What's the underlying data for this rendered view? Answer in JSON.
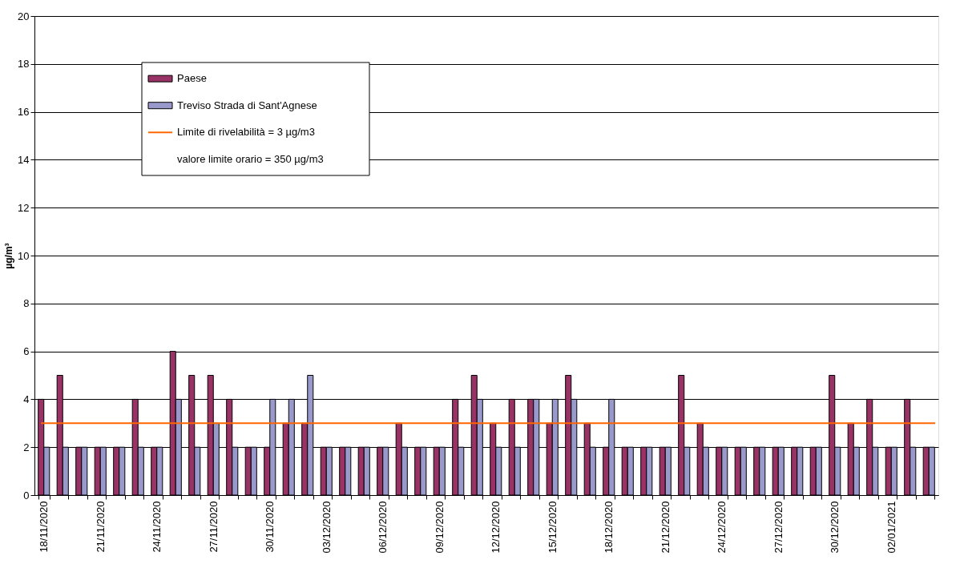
{
  "chart_data": {
    "type": "bar",
    "ylabel": "µg/m³",
    "categories": [
      "18/11/2020",
      null,
      null,
      "21/11/2020",
      null,
      null,
      "24/11/2020",
      null,
      null,
      "27/11/2020",
      null,
      null,
      "30/11/2020",
      null,
      null,
      "03/12/2020",
      null,
      null,
      "06/12/2020",
      null,
      null,
      "09/12/2020",
      null,
      null,
      "12/12/2020",
      null,
      null,
      "15/12/2020",
      null,
      null,
      "18/12/2020",
      null,
      null,
      "21/12/2020",
      null,
      null,
      "24/12/2020",
      null,
      null,
      "27/12/2020",
      null,
      null,
      "30/12/2020",
      null,
      null,
      "02/01/2021",
      null,
      null
    ],
    "series": [
      {
        "name": "Paese",
        "color": "#993366",
        "values": [
          4,
          5,
          2,
          2,
          2,
          4,
          2,
          6,
          5,
          5,
          4,
          2,
          2,
          3,
          3,
          2,
          2,
          2,
          2,
          3,
          2,
          2,
          4,
          5,
          3,
          4,
          4,
          3,
          5,
          3,
          2,
          2,
          2,
          2,
          5,
          3,
          2,
          2,
          2,
          2,
          2,
          2,
          5,
          3,
          4,
          2,
          4,
          2
        ]
      },
      {
        "name": "Treviso Strada di Sant'Agnese",
        "color": "#9999cc",
        "values": [
          2,
          2,
          2,
          2,
          2,
          2,
          2,
          4,
          2,
          3,
          2,
          2,
          4,
          4,
          5,
          2,
          2,
          2,
          2,
          2,
          2,
          2,
          2,
          4,
          2,
          2,
          4,
          4,
          4,
          2,
          4,
          2,
          2,
          2,
          2,
          2,
          2,
          2,
          2,
          2,
          2,
          2,
          2,
          2,
          2,
          2,
          2,
          2
        ]
      }
    ],
    "ylim": [
      0,
      20
    ],
    "yticks": [
      0,
      2,
      4,
      6,
      8,
      10,
      12,
      14,
      16,
      18,
      20
    ],
    "grid": "y",
    "legend": "top left",
    "ref_lines": [
      {
        "axis": "y",
        "value": 3,
        "label": "Limite di rivelabilità = 3 µg/m3",
        "color": "#ff6600"
      }
    ],
    "annotations": [
      "valore limite orario = 350 µg/m3"
    ]
  }
}
